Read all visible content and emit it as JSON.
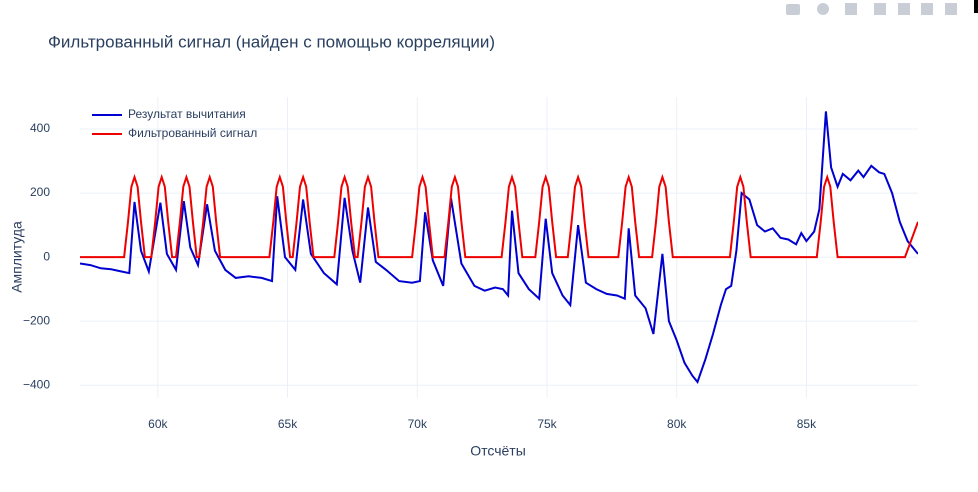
{
  "chart_data": {
    "type": "line",
    "title": "Фильтрованный сигнал (найден с помощью корреляции)",
    "x_label": "Отсчёты",
    "y_label": "Амплитуда",
    "xlim": [
      57000,
      89300
    ],
    "ylim": [
      -440,
      500
    ],
    "xticks": [
      {
        "value": 60000,
        "label": "60k"
      },
      {
        "value": 65000,
        "label": "65k"
      },
      {
        "value": 70000,
        "label": "70k"
      },
      {
        "value": 75000,
        "label": "75k"
      },
      {
        "value": 80000,
        "label": "80k"
      },
      {
        "value": 85000,
        "label": "85k"
      }
    ],
    "yticks": [
      {
        "value": -400,
        "label": "−400"
      },
      {
        "value": -200,
        "label": "−200"
      },
      0,
      200,
      400
    ],
    "grid": true,
    "legend": "top-left",
    "series": [
      {
        "name": "Результат вычитания",
        "color": "#0000d0",
        "x": [
          57000,
          57400,
          57800,
          58200,
          58600,
          58900,
          59100,
          59350,
          59650,
          60100,
          60350,
          60700,
          61000,
          61250,
          61550,
          61900,
          62200,
          62600,
          63000,
          63500,
          64000,
          64400,
          64600,
          64900,
          65300,
          65600,
          65900,
          66400,
          66900,
          67200,
          67500,
          67800,
          68100,
          68400,
          68800,
          69300,
          69800,
          70100,
          70300,
          70600,
          71000,
          71300,
          71700,
          72200,
          72600,
          73000,
          73300,
          73500,
          73650,
          73900,
          74300,
          74700,
          74950,
          75200,
          75600,
          75900,
          76200,
          76500,
          76900,
          77300,
          77700,
          78000,
          78150,
          78400,
          78800,
          79100,
          79450,
          79700,
          80000,
          80300,
          80600,
          80800,
          81100,
          81400,
          81700,
          81900,
          82100,
          82300,
          82500,
          82800,
          83100,
          83400,
          83700,
          84000,
          84300,
          84600,
          84800,
          85000,
          85300,
          85500,
          85750,
          85950,
          86200,
          86400,
          86700,
          87000,
          87200,
          87500,
          87800,
          88000,
          88300,
          88600,
          88900,
          89100,
          89300
        ],
        "values": [
          -20,
          -25,
          -35,
          -38,
          -45,
          -50,
          172,
          20,
          -45,
          170,
          10,
          -40,
          175,
          30,
          -25,
          165,
          20,
          -40,
          -65,
          -60,
          -65,
          -75,
          190,
          0,
          -40,
          180,
          10,
          -50,
          -85,
          185,
          20,
          -80,
          155,
          -15,
          -40,
          -75,
          -80,
          -75,
          140,
          -10,
          -90,
          184,
          -20,
          -90,
          -105,
          -95,
          -100,
          -120,
          145,
          -50,
          -100,
          -130,
          120,
          -50,
          -120,
          -150,
          100,
          -80,
          -100,
          -115,
          -120,
          -130,
          90,
          -120,
          -160,
          -240,
          10,
          -200,
          -260,
          -330,
          -370,
          -390,
          -320,
          -240,
          -150,
          -100,
          -90,
          20,
          200,
          180,
          100,
          80,
          90,
          60,
          55,
          40,
          75,
          50,
          80,
          150,
          455,
          280,
          220,
          260,
          240,
          270,
          250,
          285,
          265,
          260,
          200,
          110,
          50,
          30,
          10
        ]
      },
      {
        "name": "Фильтрованный сигнал",
        "color": "#ee0000",
        "x": [
          57000,
          58700,
          58850,
          58980,
          59100,
          59220,
          59350,
          59500,
          59750,
          59900,
          60030,
          60150,
          60270,
          60400,
          60550,
          60700,
          60850,
          60980,
          61100,
          61220,
          61350,
          61500,
          61600,
          61750,
          61880,
          62000,
          62120,
          62250,
          62400,
          64300,
          64450,
          64580,
          64700,
          64820,
          64950,
          65100,
          65200,
          65350,
          65480,
          65600,
          65720,
          65850,
          66000,
          66800,
          66950,
          67080,
          67200,
          67320,
          67450,
          67600,
          67700,
          67850,
          67980,
          68100,
          68220,
          68350,
          68500,
          69800,
          69950,
          70080,
          70200,
          70320,
          70450,
          70600,
          71050,
          71200,
          71330,
          71450,
          71570,
          71700,
          71850,
          73250,
          73400,
          73530,
          73650,
          73770,
          73900,
          74050,
          74550,
          74700,
          74830,
          74950,
          75070,
          75200,
          75350,
          75800,
          75950,
          76080,
          76200,
          76320,
          76450,
          76600,
          77750,
          77900,
          78030,
          78150,
          78270,
          78400,
          78550,
          79050,
          79200,
          79330,
          79450,
          79570,
          79700,
          79850,
          82050,
          82200,
          82330,
          82450,
          82570,
          82700,
          82850,
          85400,
          85550,
          85680,
          85800,
          85920,
          86050,
          86200,
          88800,
          89300
        ],
        "values": [
          0,
          0,
          110,
          220,
          250,
          220,
          110,
          0,
          0,
          110,
          220,
          250,
          220,
          110,
          0,
          0,
          110,
          220,
          250,
          220,
          110,
          0,
          0,
          110,
          220,
          250,
          220,
          110,
          0,
          0,
          110,
          220,
          250,
          220,
          110,
          0,
          0,
          110,
          220,
          250,
          220,
          110,
          0,
          0,
          110,
          220,
          250,
          220,
          110,
          0,
          0,
          110,
          220,
          250,
          220,
          110,
          0,
          0,
          110,
          220,
          250,
          220,
          110,
          0,
          0,
          110,
          220,
          250,
          220,
          110,
          0,
          0,
          110,
          220,
          250,
          220,
          110,
          0,
          0,
          110,
          220,
          250,
          220,
          110,
          0,
          0,
          110,
          220,
          250,
          220,
          110,
          0,
          0,
          110,
          220,
          250,
          220,
          110,
          0,
          0,
          110,
          220,
          250,
          220,
          110,
          0,
          0,
          110,
          220,
          250,
          220,
          110,
          0,
          0,
          110,
          220,
          250,
          220,
          110,
          0,
          0,
          110
        ]
      }
    ]
  }
}
